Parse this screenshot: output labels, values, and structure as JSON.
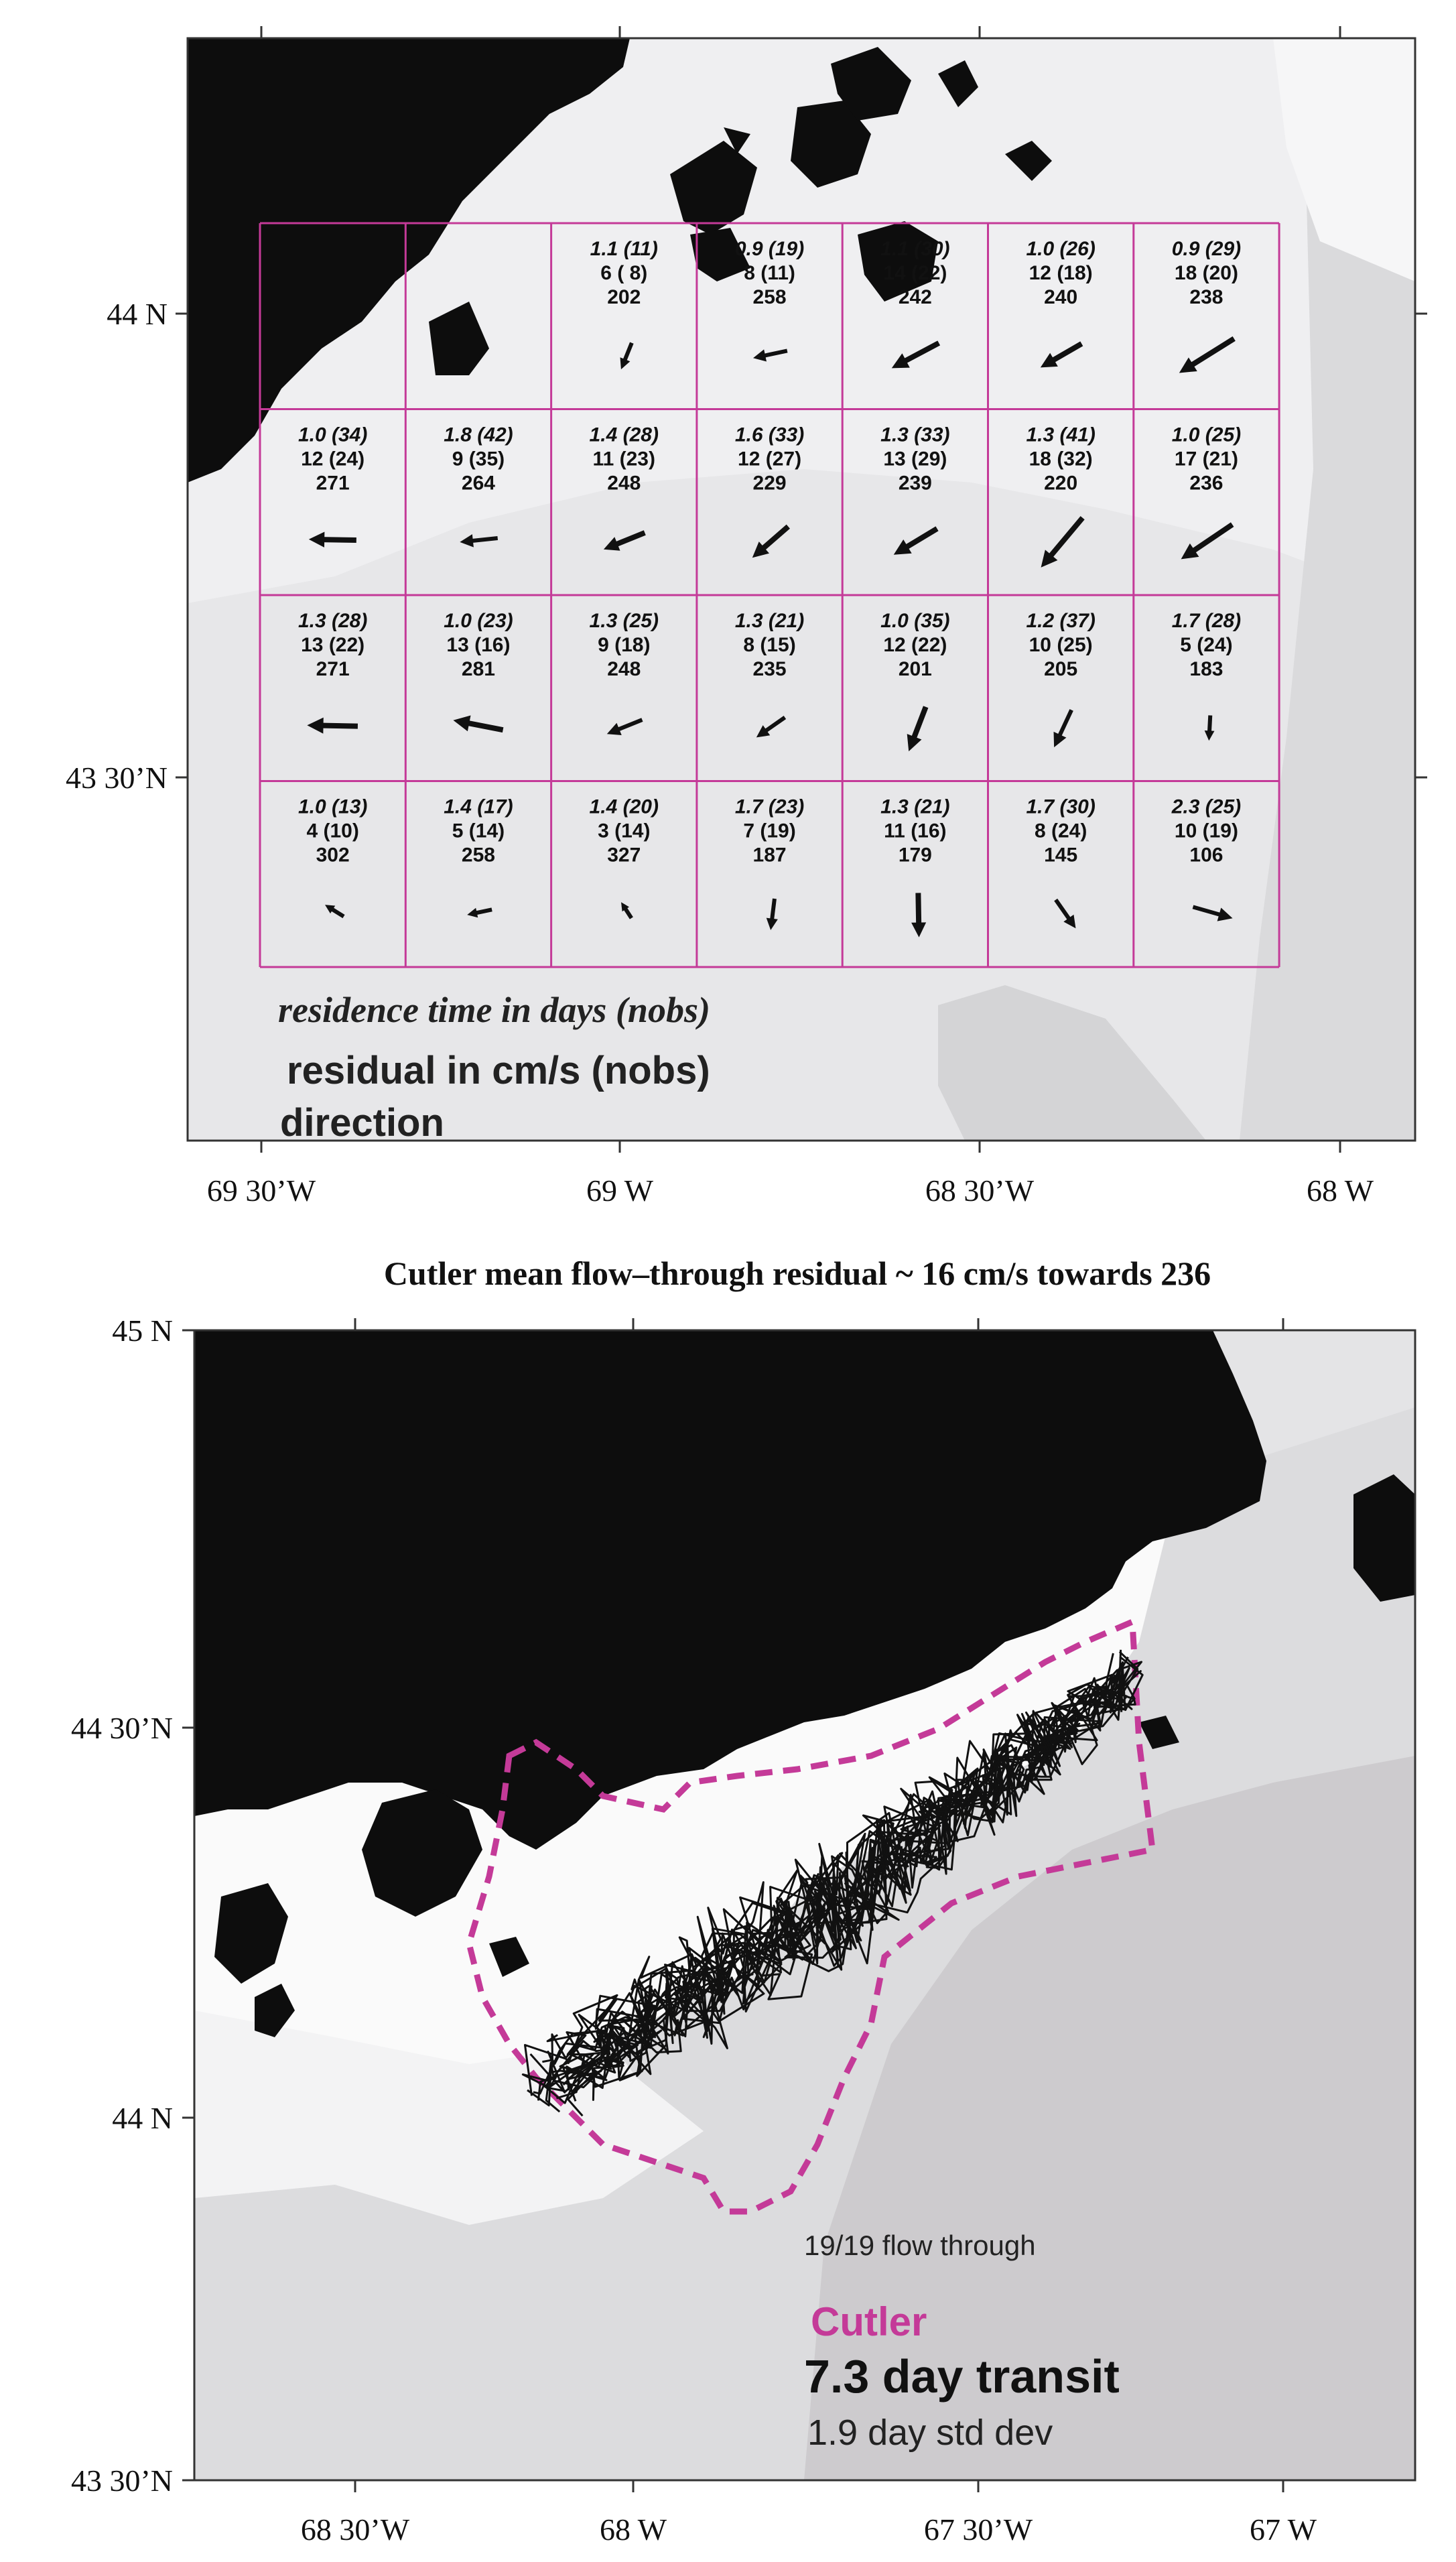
{
  "top_map": {
    "lat_labels": [
      "44 N",
      "43 30’N"
    ],
    "lon_labels": [
      "69 30’W",
      "69 W",
      "68 30’W",
      "68 W"
    ],
    "legend": {
      "residence": "residence time in days (nobs)",
      "residual": "residual in cm/s (nobs)",
      "direction": "direction"
    },
    "cells": [
      {
        "r": 0,
        "c": 2,
        "res": "1.1 (11)",
        "resid": "6 ( 8)",
        "dir": "202"
      },
      {
        "r": 0,
        "c": 3,
        "res": "0.9 (19)",
        "resid": "8 (11)",
        "dir": "258"
      },
      {
        "r": 0,
        "c": 4,
        "res": "1.1 (30)",
        "resid": "14 (22)",
        "dir": "242"
      },
      {
        "r": 0,
        "c": 5,
        "res": "1.0 (26)",
        "resid": "12 (18)",
        "dir": "240"
      },
      {
        "r": 0,
        "c": 6,
        "res": "0.9 (29)",
        "resid": "18 (20)",
        "dir": "238"
      },
      {
        "r": 1,
        "c": 0,
        "res": "1.0 (34)",
        "resid": "12 (24)",
        "dir": "271"
      },
      {
        "r": 1,
        "c": 1,
        "res": "1.8 (42)",
        "resid": "9 (35)",
        "dir": "264"
      },
      {
        "r": 1,
        "c": 2,
        "res": "1.4 (28)",
        "resid": "11 (23)",
        "dir": "248"
      },
      {
        "r": 1,
        "c": 3,
        "res": "1.6 (33)",
        "resid": "12 (27)",
        "dir": "229"
      },
      {
        "r": 1,
        "c": 4,
        "res": "1.3 (33)",
        "resid": "13 (29)",
        "dir": "239"
      },
      {
        "r": 1,
        "c": 5,
        "res": "1.3 (41)",
        "resid": "18 (32)",
        "dir": "220"
      },
      {
        "r": 1,
        "c": 6,
        "res": "1.0 (25)",
        "resid": "17 (21)",
        "dir": "236"
      },
      {
        "r": 2,
        "c": 0,
        "res": "1.3 (28)",
        "resid": "13 (22)",
        "dir": "271"
      },
      {
        "r": 2,
        "c": 1,
        "res": "1.0 (23)",
        "resid": "13 (16)",
        "dir": "281"
      },
      {
        "r": 2,
        "c": 2,
        "res": "1.3 (25)",
        "resid": "9 (18)",
        "dir": "248"
      },
      {
        "r": 2,
        "c": 3,
        "res": "1.3 (21)",
        "resid": "8 (15)",
        "dir": "235"
      },
      {
        "r": 2,
        "c": 4,
        "res": "1.0 (35)",
        "resid": "12 (22)",
        "dir": "201"
      },
      {
        "r": 2,
        "c": 5,
        "res": "1.2 (37)",
        "resid": "10 (25)",
        "dir": "205"
      },
      {
        "r": 2,
        "c": 6,
        "res": "1.7 (28)",
        "resid": "5 (24)",
        "dir": "183"
      },
      {
        "r": 3,
        "c": 0,
        "res": "1.0 (13)",
        "resid": "4 (10)",
        "dir": "302"
      },
      {
        "r": 3,
        "c": 1,
        "res": "1.4 (17)",
        "resid": "5 (14)",
        "dir": "258"
      },
      {
        "r": 3,
        "c": 2,
        "res": "1.4 (20)",
        "resid": "3 (14)",
        "dir": "327"
      },
      {
        "r": 3,
        "c": 3,
        "res": "1.7 (23)",
        "resid": "7 (19)",
        "dir": "187"
      },
      {
        "r": 3,
        "c": 4,
        "res": "1.3 (21)",
        "resid": "11 (16)",
        "dir": "179"
      },
      {
        "r": 3,
        "c": 5,
        "res": "1.7 (30)",
        "resid": "8 (24)",
        "dir": "145"
      },
      {
        "r": 3,
        "c": 6,
        "res": "2.3 (25)",
        "resid": "10 (19)",
        "dir": "106"
      }
    ]
  },
  "bottom_map": {
    "title": "Cutler mean flow–through residual ~ 16 cm/s towards 236",
    "lat_labels": [
      "45 N",
      "44 30’N",
      "44 N",
      "43 30’N"
    ],
    "lon_labels": [
      "68 30’W",
      "68 W",
      "67 30’W",
      "67 W"
    ],
    "flow_through": "19/19 flow through",
    "site": "Cutler",
    "transit": "7.3 day transit",
    "std_dev": "1.9 day std dev"
  },
  "colors": {
    "land": "#0d0d0d",
    "shallow": "#f4f4f5",
    "mid": "#e6e6e8",
    "deep": "#d3d2d4",
    "magenta": "#c43a98"
  }
}
